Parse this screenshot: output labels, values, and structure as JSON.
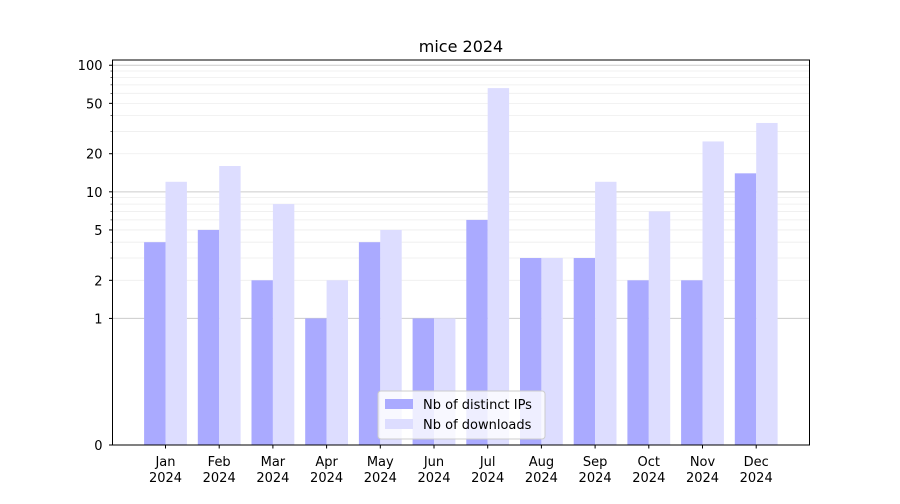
{
  "chart_data": {
    "type": "bar",
    "title": "mice 2024",
    "xlabel": "",
    "ylabel": "",
    "yscale": "symlog",
    "ylim": [
      0,
      110
    ],
    "yticks": [
      0,
      1,
      2,
      5,
      10,
      20,
      50,
      100
    ],
    "grid": "y",
    "legend_position": "bottom-center",
    "categories": [
      "Jan\n2024",
      "Feb\n2024",
      "Mar\n2024",
      "Apr\n2024",
      "May\n2024",
      "Jun\n2024",
      "Jul\n2024",
      "Aug\n2024",
      "Sep\n2024",
      "Oct\n2024",
      "Nov\n2024",
      "Dec\n2024"
    ],
    "series": [
      {
        "name": "Nb of distinct IPs",
        "color": "#aaaaff",
        "values": [
          4,
          5,
          2,
          1,
          4,
          1,
          6,
          3,
          3,
          2,
          2,
          14
        ]
      },
      {
        "name": "Nb of downloads",
        "color": "#ddddff",
        "values": [
          12,
          16,
          8,
          2,
          5,
          1,
          66,
          3,
          12,
          7,
          25,
          35
        ]
      }
    ]
  }
}
